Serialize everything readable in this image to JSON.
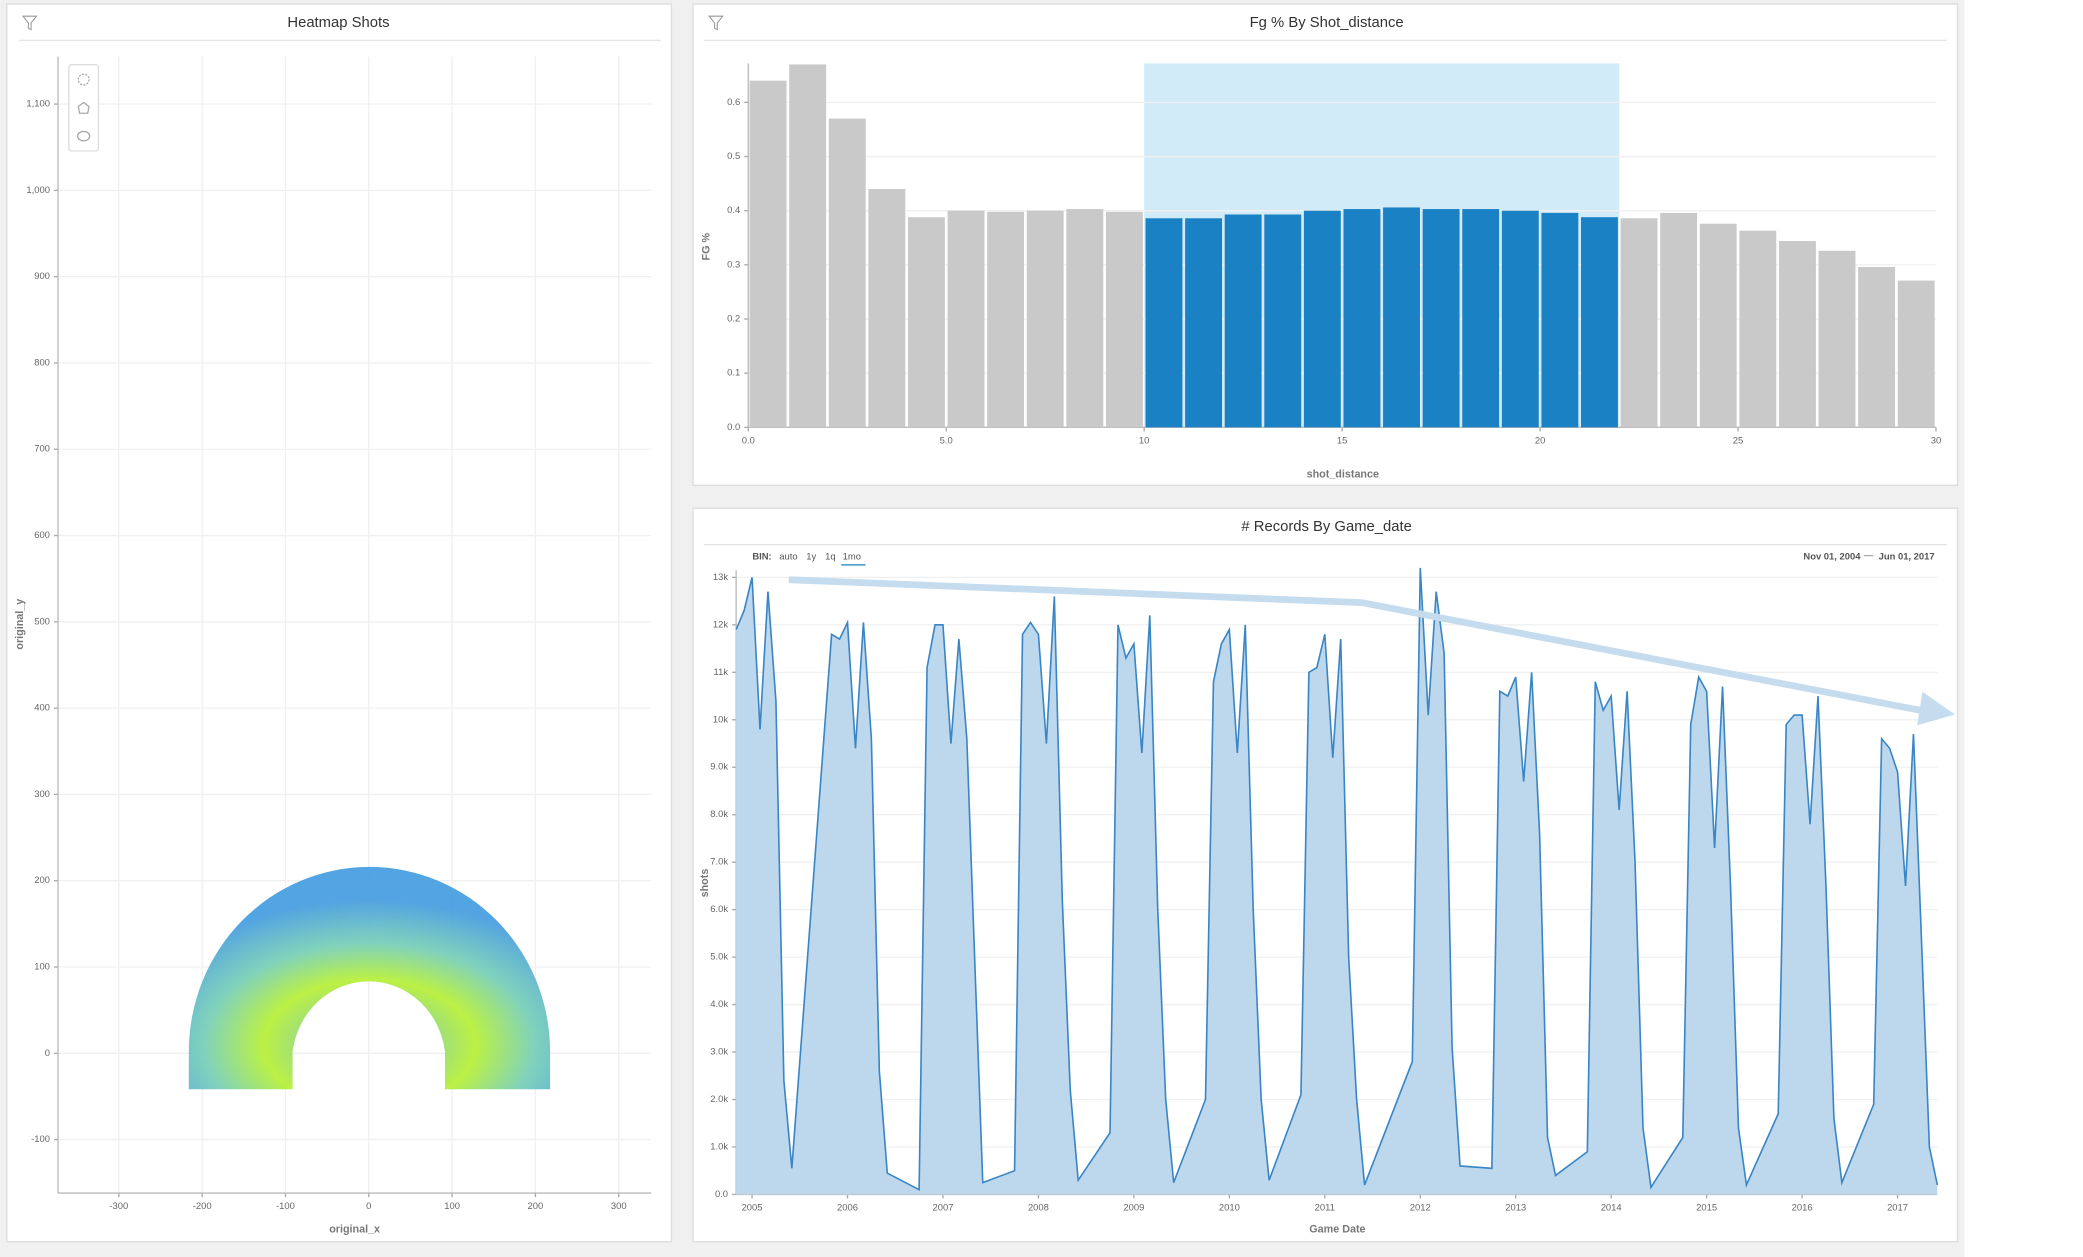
{
  "chart_data": [
    {
      "type": "heatmap",
      "title": "Heatmap Shots",
      "xlabel": "original_x",
      "ylabel": "original_y",
      "xlim": [
        -373,
        339
      ],
      "ylim": [
        -162,
        1155
      ],
      "xticks": [
        -300,
        -200,
        -100,
        0,
        100,
        200,
        300
      ],
      "yticks": [
        -100,
        0,
        100,
        200,
        300,
        400,
        500,
        600,
        700,
        800,
        900,
        {
          "value": 1000,
          "label": "1,000"
        },
        {
          "value": 1100,
          "label": "1,100"
        }
      ],
      "grid": true
    },
    {
      "type": "histogram",
      "title": "Fg % By Shot_distance",
      "xlabel": "shot_distance",
      "ylabel": "FG %",
      "bins": [
        0,
        1,
        2,
        3,
        4,
        5,
        6,
        7,
        8,
        9,
        10,
        11,
        12,
        13,
        14,
        15,
        16,
        17,
        18,
        19,
        20,
        21,
        22,
        23,
        24,
        25,
        26,
        27,
        28,
        29,
        30
      ],
      "values": [
        0.64,
        0.67,
        0.57,
        0.44,
        0.388,
        0.4,
        0.398,
        0.4,
        0.403,
        0.398,
        0.386,
        0.386,
        0.393,
        0.393,
        0.4,
        0.403,
        0.406,
        0.403,
        0.403,
        0.4,
        0.396,
        0.388,
        0.386,
        0.396,
        0.376,
        0.363,
        0.344,
        0.326,
        0.296,
        0.271
      ],
      "color": "#c9c9c9",
      "selected_color": "#1a81c4",
      "selection": [
        10,
        22
      ],
      "selection_color": "#d2ebf9",
      "xlim": [
        0,
        30
      ],
      "ylim": [
        0,
        0.672
      ],
      "xticks": [
        {
          "value": 0,
          "label": "0.0"
        },
        {
          "value": 5,
          "label": "5.0"
        },
        10,
        15,
        20,
        25,
        30
      ],
      "yticks": [
        {
          "value": 0,
          "label": "0.0"
        },
        0.1,
        0.2,
        0.3,
        0.4,
        0.5,
        0.6
      ],
      "grid": true
    },
    {
      "type": "area",
      "title": "# Records By Game_date",
      "xlabel": "Game Date",
      "ylabel": "shots",
      "bin_label": "BIN:",
      "bin_options": [
        "auto",
        "1y",
        "1q",
        "1mo"
      ],
      "bin_selected": 3,
      "range_start": "Nov 01, 2004",
      "range_separator": "—",
      "range_end": "Jun 01, 2017",
      "x": [
        "2004-11",
        "2004-12",
        "2005-01",
        "2005-02",
        "2005-03",
        "2005-04",
        "2005-05",
        "2005-06",
        "2005-11",
        "2005-12",
        "2006-01",
        "2006-02",
        "2006-03",
        "2006-04",
        "2006-05",
        "2006-06",
        "2006-10",
        "2006-11",
        "2006-12",
        "2007-01",
        "2007-02",
        "2007-03",
        "2007-04",
        "2007-05",
        "2007-06",
        "2007-10",
        "2007-11",
        "2007-12",
        "2008-01",
        "2008-02",
        "2008-03",
        "2008-04",
        "2008-05",
        "2008-06",
        "2008-10",
        "2008-11",
        "2008-12",
        "2009-01",
        "2009-02",
        "2009-03",
        "2009-04",
        "2009-05",
        "2009-06",
        "2009-10",
        "2009-11",
        "2009-12",
        "2010-01",
        "2010-02",
        "2010-03",
        "2010-04",
        "2010-05",
        "2010-06",
        "2010-10",
        "2010-11",
        "2010-12",
        "2011-01",
        "2011-02",
        "2011-03",
        "2011-04",
        "2011-05",
        "2011-06",
        "2011-12",
        "2012-01",
        "2012-02",
        "2012-03",
        "2012-04",
        "2012-05",
        "2012-06",
        "2012-10",
        "2012-11",
        "2012-12",
        "2013-01",
        "2013-02",
        "2013-03",
        "2013-04",
        "2013-05",
        "2013-06",
        "2013-10",
        "2013-11",
        "2013-12",
        "2014-01",
        "2014-02",
        "2014-03",
        "2014-04",
        "2014-05",
        "2014-06",
        "2014-10",
        "2014-11",
        "2014-12",
        "2015-01",
        "2015-02",
        "2015-03",
        "2015-04",
        "2015-05",
        "2015-06",
        "2015-10",
        "2015-11",
        "2015-12",
        "2016-01",
        "2016-02",
        "2016-03",
        "2016-04",
        "2016-05",
        "2016-06",
        "2016-10",
        "2016-11",
        "2016-12",
        "2017-01",
        "2017-02",
        "2017-03",
        "2017-04",
        "2017-05",
        "2017-06"
      ],
      "values": [
        11900,
        12300,
        13000,
        9800,
        12700,
        10400,
        2400,
        550,
        11800,
        11700,
        12050,
        9400,
        12050,
        9600,
        2600,
        450,
        100,
        11100,
        12000,
        12000,
        9500,
        11700,
        9600,
        4900,
        250,
        500,
        11800,
        12050,
        11800,
        9500,
        12600,
        6200,
        2200,
        300,
        1300,
        12000,
        11300,
        11600,
        9300,
        12200,
        6000,
        2000,
        250,
        2000,
        10800,
        11600,
        11900,
        9300,
        12000,
        6000,
        2000,
        300,
        2100,
        11000,
        11100,
        11800,
        9200,
        11700,
        5000,
        2000,
        200,
        2800,
        13200,
        10100,
        12700,
        11400,
        3100,
        600,
        550,
        10600,
        10500,
        10900,
        8700,
        11000,
        7600,
        1200,
        400,
        900,
        10800,
        10200,
        10500,
        8100,
        10600,
        7000,
        1400,
        150,
        1200,
        9900,
        10900,
        10600,
        7300,
        10700,
        6500,
        1400,
        200,
        1700,
        9900,
        10100,
        10100,
        7800,
        10500,
        6500,
        1600,
        250,
        1900,
        9600,
        9400,
        8900,
        6500,
        9700,
        5400,
        1000,
        200
      ],
      "color": "#3a86c4",
      "fill": "#bdd7ed",
      "xlim": [
        "2004-11",
        "2017-06"
      ],
      "xticks": [
        2005,
        2006,
        2007,
        2008,
        2009,
        2010,
        2011,
        2012,
        2013,
        2014,
        2015,
        2016,
        2017
      ],
      "ylim": [
        0,
        13150
      ],
      "yticks": [
        {
          "value": 0,
          "label": "0.0"
        },
        {
          "value": 1000,
          "label": "1.0k"
        },
        {
          "value": 2000,
          "label": "2.0k"
        },
        {
          "value": 3000,
          "label": "3.0k"
        },
        {
          "value": 4000,
          "label": "4.0k"
        },
        {
          "value": 5000,
          "label": "5.0k"
        },
        {
          "value": 6000,
          "label": "6.0k"
        },
        {
          "value": 7000,
          "label": "7.0k"
        },
        {
          "value": 8000,
          "label": "8.0k"
        },
        {
          "value": 9000,
          "label": "9.0k"
        },
        {
          "value": 10000,
          "label": "10k"
        },
        {
          "value": 11000,
          "label": "11k"
        },
        {
          "value": 12000,
          "label": "12k"
        },
        {
          "value": 13000,
          "label": "13k"
        }
      ],
      "grid": true
    }
  ]
}
